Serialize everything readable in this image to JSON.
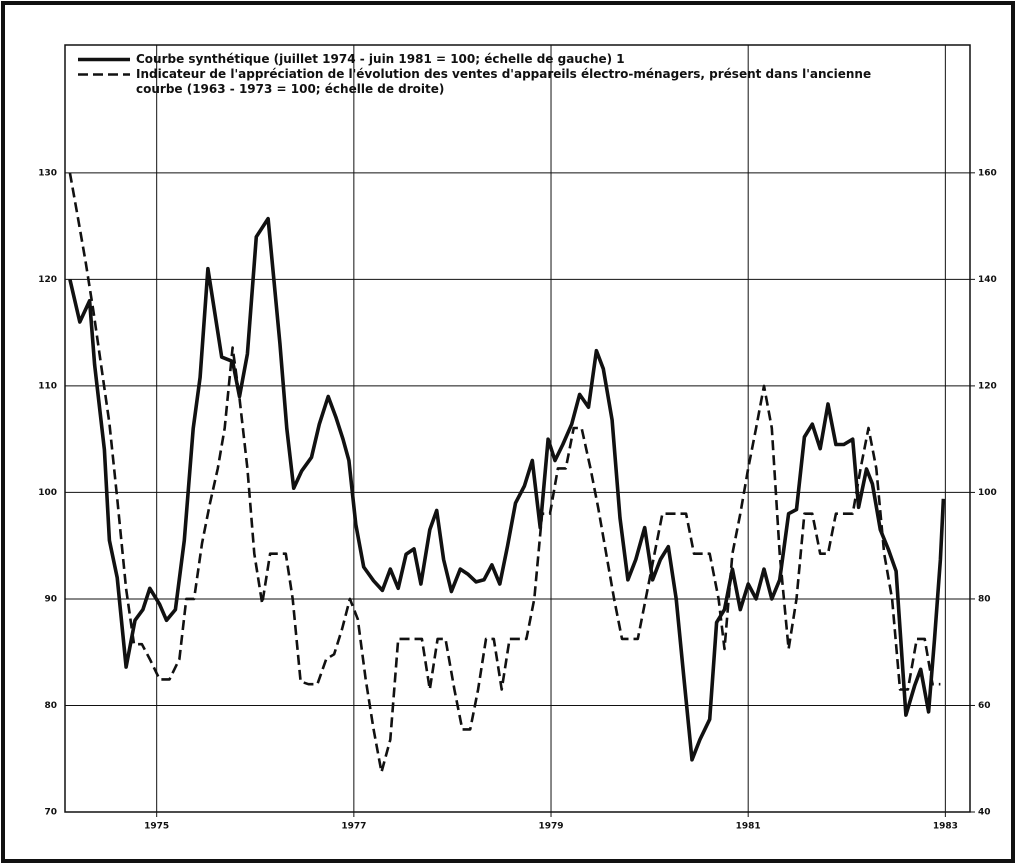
{
  "chart_data": {
    "type": "line",
    "xlim": [
      1974.07,
      1983.25
    ],
    "xticks": [
      1975,
      1977,
      1979,
      1981,
      1983
    ],
    "ylim": [
      70,
      142
    ],
    "yticks": [
      70,
      80,
      90,
      100,
      110,
      120,
      130
    ],
    "y2lim": [
      40,
      184
    ],
    "y2ticks": [
      40,
      60,
      80,
      100,
      120,
      140,
      160
    ],
    "grid": true,
    "legend": "top-left",
    "series": [
      {
        "name": "Courbe synthétique (juillet 1974 - juin 1981 = 100; échelle de gauche) 1",
        "color": "#111111",
        "dash": false,
        "x": [
          1974.12,
          1974.22,
          1974.32,
          1974.37,
          1974.47,
          1974.52,
          1974.6,
          1974.69,
          1974.78,
          1974.86,
          1974.93,
          1975.03,
          1975.1,
          1975.19,
          1975.28,
          1975.37,
          1975.44,
          1975.52,
          1975.57,
          1975.66,
          1975.77,
          1975.84,
          1975.92,
          1976.01,
          1976.13,
          1976.25,
          1976.32,
          1976.39,
          1976.47,
          1976.57,
          1976.65,
          1976.74,
          1976.82,
          1976.89,
          1976.95,
          1977.02,
          1977.1,
          1977.2,
          1977.29,
          1977.37,
          1977.45,
          1977.53,
          1977.61,
          1977.68,
          1977.77,
          1977.84,
          1977.91,
          1977.99,
          1978.08,
          1978.16,
          1978.24,
          1978.32,
          1978.4,
          1978.48,
          1978.56,
          1978.64,
          1978.73,
          1978.81,
          1978.89,
          1978.97,
          1979.04,
          1979.12,
          1979.21,
          1979.29,
          1979.38,
          1979.46,
          1979.53,
          1979.62,
          1979.7,
          1979.78,
          1979.86,
          1979.95,
          1980.03,
          1980.11,
          1980.19,
          1980.27,
          1980.35,
          1980.43,
          1980.51,
          1980.61,
          1980.68,
          1980.76,
          1980.84,
          1980.92,
          1981.0,
          1981.08,
          1981.16,
          1981.24,
          1981.32,
          1981.41,
          1981.49,
          1981.57,
          1981.65,
          1981.73,
          1981.81,
          1981.89,
          1981.97,
          1982.06,
          1982.12,
          1982.2,
          1982.26,
          1982.34,
          1982.42,
          1982.5,
          1982.6,
          1982.69,
          1982.75,
          1982.83,
          1982.89,
          1982.95,
          1982.98
        ],
        "values": [
          120,
          116,
          118,
          112,
          104,
          95.5,
          92,
          83.6,
          88,
          89,
          91,
          89.5,
          88,
          89,
          95.5,
          106,
          110.8,
          121,
          118,
          112.7,
          112.3,
          109,
          113,
          124,
          125.7,
          114,
          106,
          100.4,
          102,
          103.3,
          106.4,
          109,
          107,
          105,
          103,
          97,
          93,
          91.7,
          90.8,
          92.8,
          91,
          94.2,
          94.7,
          91.4,
          96.5,
          98.3,
          93.7,
          90.7,
          92.8,
          92.3,
          91.6,
          91.8,
          93.2,
          91.4,
          95,
          99,
          100.6,
          103,
          96.7,
          105,
          103,
          104.5,
          106.4,
          109.2,
          108,
          113.3,
          111.6,
          106.8,
          97.6,
          91.8,
          93.7,
          96.7,
          91.8,
          93.7,
          94.9,
          90,
          82.4,
          74.9,
          76.8,
          78.7,
          87.8,
          89,
          92.8,
          89,
          91.4,
          90,
          92.8,
          90,
          91.8,
          98,
          98.4,
          105.2,
          106.4,
          104.1,
          108.3,
          104.5,
          104.5,
          105,
          98.6,
          102.2,
          100.8,
          96.5,
          94.7,
          92.6,
          79.1,
          81.9,
          83.4,
          79.4,
          86.2,
          93.7,
          99.4
        ]
      },
      {
        "name": "Indicateur de l'appréciation de l'évolution des ventes d'appareils électro-ménagers, présent dans l'ancienne courbe (1963 - 1973 = 100; échelle de droite)",
        "color": "#111111",
        "dash": true,
        "axis": "y2",
        "x": [
          1974.12,
          1974.2,
          1974.28,
          1974.36,
          1974.44,
          1974.52,
          1974.6,
          1974.69,
          1974.77,
          1974.85,
          1974.93,
          1975.03,
          1975.13,
          1975.23,
          1975.3,
          1975.38,
          1975.46,
          1975.54,
          1975.62,
          1975.69,
          1975.77,
          1975.84,
          1975.92,
          1975.99,
          1976.07,
          1976.15,
          1976.23,
          1976.31,
          1976.38,
          1976.46,
          1976.54,
          1976.63,
          1976.72,
          1976.8,
          1976.88,
          1976.96,
          1977.04,
          1977.12,
          1977.2,
          1977.28,
          1977.37,
          1977.45,
          1977.53,
          1977.61,
          1977.69,
          1977.77,
          1977.85,
          1977.93,
          1978.02,
          1978.1,
          1978.18,
          1978.26,
          1978.34,
          1978.42,
          1978.5,
          1978.58,
          1978.66,
          1978.75,
          1978.83,
          1978.91,
          1978.99,
          1979.07,
          1979.15,
          1979.23,
          1979.31,
          1979.4,
          1979.48,
          1979.56,
          1979.64,
          1979.72,
          1979.8,
          1979.88,
          1979.96,
          1980.05,
          1980.13,
          1980.21,
          1980.29,
          1980.37,
          1980.45,
          1980.53,
          1980.61,
          1980.7,
          1980.76,
          1980.84,
          1980.92,
          1981.0,
          1981.08,
          1981.16,
          1981.24,
          1981.32,
          1981.41,
          1981.49,
          1981.57,
          1981.65,
          1981.73,
          1981.81,
          1981.89,
          1981.97,
          1982.06,
          1982.14,
          1982.22,
          1982.3,
          1982.38,
          1982.46,
          1982.54,
          1982.62,
          1982.71,
          1982.79,
          1982.87,
          1982.95
        ],
        "values": [
          160,
          151.7,
          143.2,
          133.8,
          123.4,
          113,
          98.9,
          81.9,
          71.5,
          71.5,
          68.7,
          64.9,
          64.9,
          68.7,
          80,
          80,
          90.4,
          97.9,
          104.5,
          112.1,
          127.2,
          117.7,
          104.5,
          88.5,
          79.1,
          88.5,
          88.5,
          88.5,
          80,
          64.5,
          64,
          64,
          68.7,
          69.6,
          74.3,
          80,
          76.2,
          64.9,
          55.5,
          47.5,
          53.6,
          72.5,
          72.5,
          72.5,
          72.5,
          63,
          72.5,
          72.5,
          63,
          55.5,
          55.5,
          63,
          72.5,
          72.5,
          63,
          72.5,
          72.5,
          72.5,
          80,
          96,
          96,
          104.5,
          104.5,
          112.1,
          112.1,
          104.5,
          97,
          88.5,
          80,
          72.5,
          72.5,
          72.5,
          80,
          88.5,
          96,
          96,
          96,
          96,
          88.5,
          88.5,
          88.5,
          80,
          70.6,
          88.5,
          96,
          104.5,
          112.1,
          120,
          112.1,
          88.5,
          70.6,
          80,
          96,
          96,
          88.5,
          88.5,
          96,
          96,
          96,
          104.5,
          112.1,
          104.5,
          88.5,
          80,
          63,
          63,
          72.5,
          72.5,
          64,
          64
        ]
      }
    ]
  }
}
